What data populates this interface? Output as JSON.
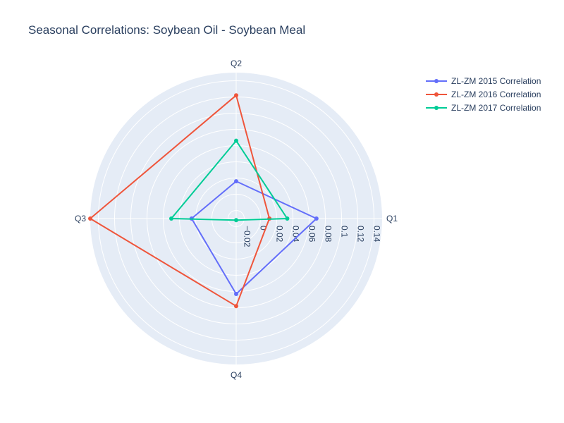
{
  "chart_data": {
    "type": "radar",
    "title": "Seasonal Correlations: Soybean Oil - Soybean Meal",
    "categories": [
      "Q1",
      "Q2",
      "Q3",
      "Q4"
    ],
    "radial_range": [
      -0.03,
      0.15
    ],
    "radial_ticks": [
      -0.02,
      0,
      0.02,
      0.04,
      0.06,
      0.08,
      0.1,
      0.12,
      0.14
    ],
    "radial_tick_labels": [
      "−0.02",
      "0",
      "0.02",
      "0.04",
      "0.06",
      "0.08",
      "0.1",
      "0.12",
      "0.14"
    ],
    "grid": true,
    "legend_position": "top-right",
    "series": [
      {
        "name": "ZL-ZM 2015 Correlation",
        "color": "#636efa",
        "values": [
          0.069,
          0.016,
          0.025,
          0.063
        ]
      },
      {
        "name": "ZL-ZM 2016 Correlation",
        "color": "#ef553b",
        "values": [
          0.011,
          0.122,
          0.15,
          0.078
        ]
      },
      {
        "name": "ZL-ZM 2017 Correlation",
        "color": "#00cc96",
        "values": [
          0.033,
          0.066,
          0.05,
          -0.028
        ]
      }
    ]
  }
}
